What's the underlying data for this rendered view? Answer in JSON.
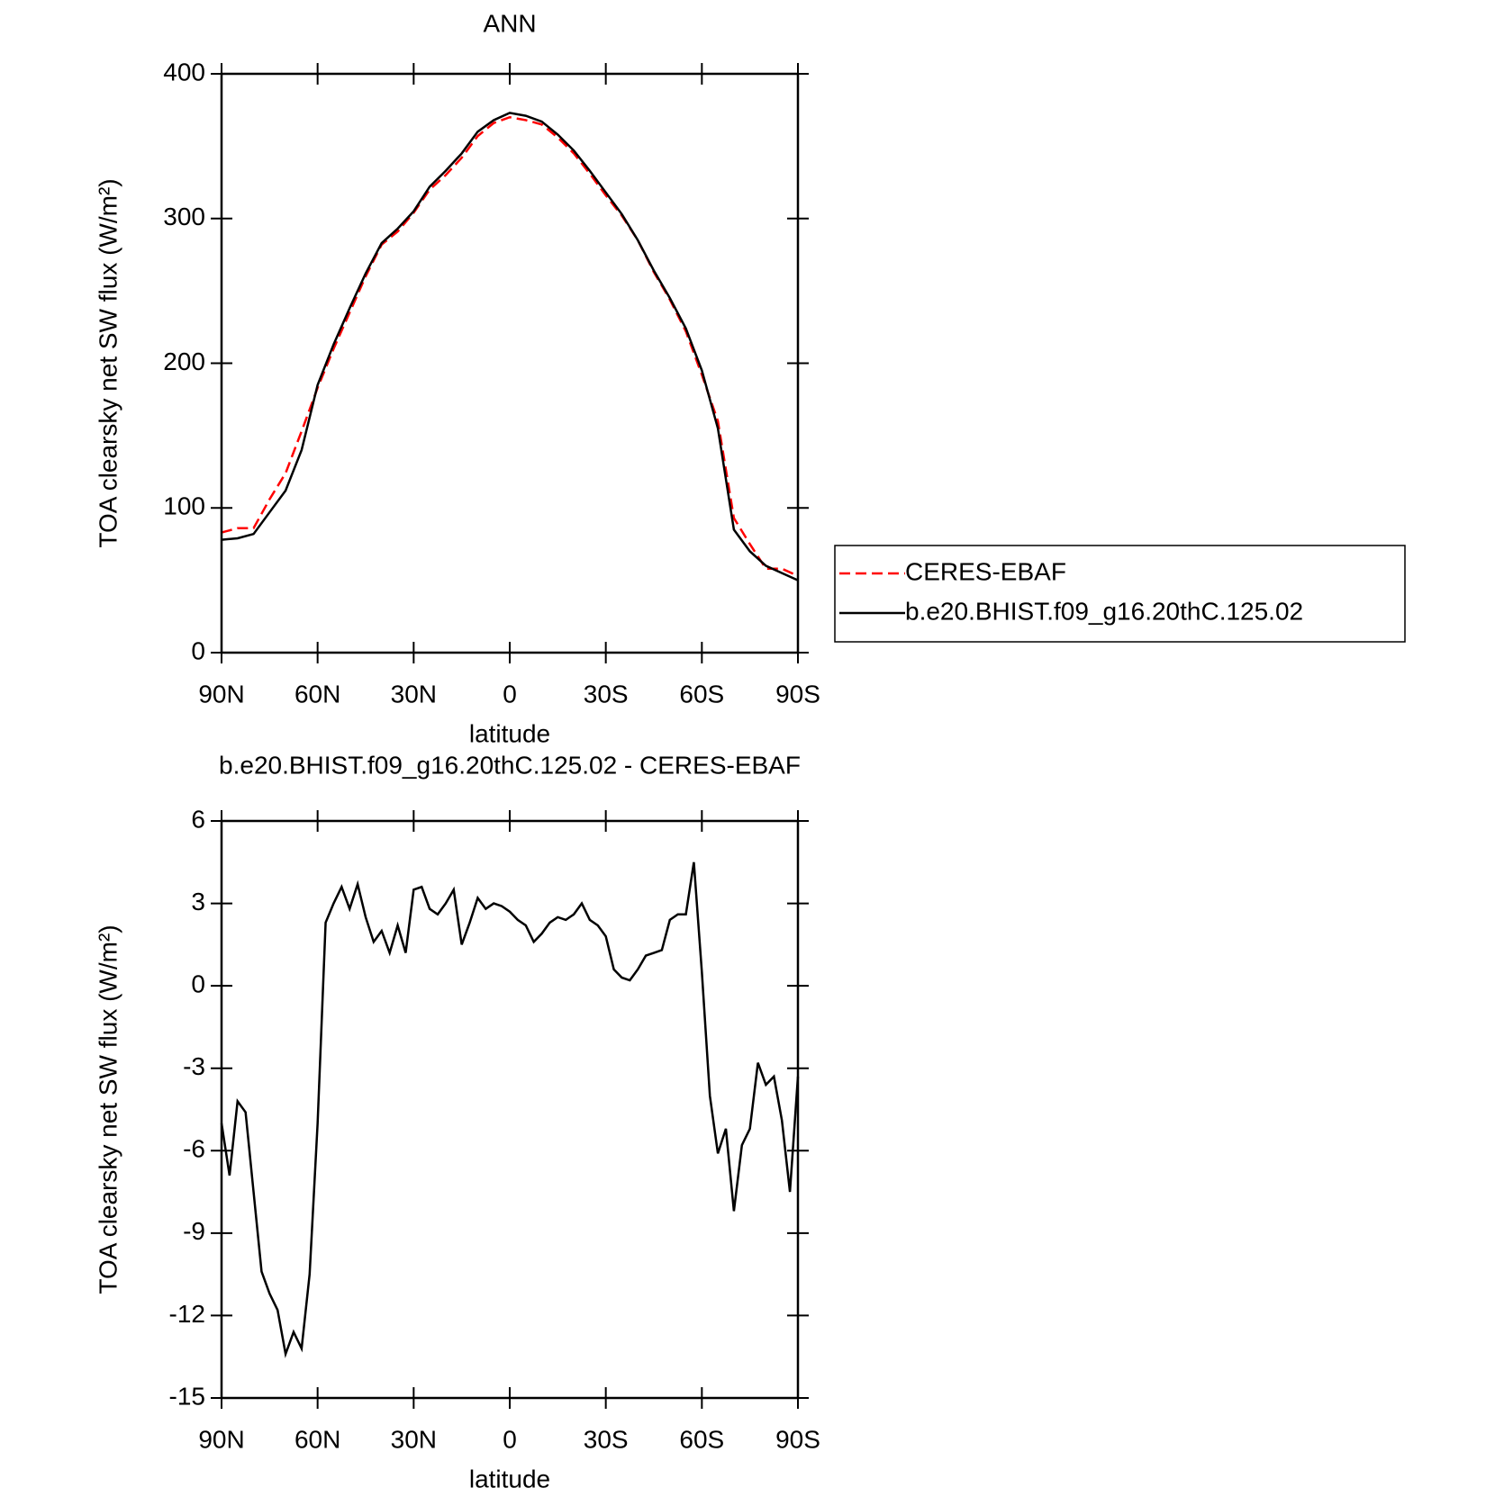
{
  "chart_data": [
    {
      "type": "line",
      "title": "ANN",
      "xlabel": "latitude",
      "ylabel": "TOA clearsky net SW flux (W/m²)",
      "x": [
        90,
        85,
        80,
        75,
        70,
        65,
        60,
        55,
        50,
        45,
        40,
        35,
        30,
        25,
        20,
        15,
        10,
        5,
        0,
        -5,
        -10,
        -15,
        -20,
        -25,
        -30,
        -35,
        -40,
        -45,
        -50,
        -55,
        -60,
        -65,
        -70,
        -75,
        -80,
        -85,
        -90
      ],
      "series": [
        {
          "name": "CERES-EBAF",
          "color": "#ff0000",
          "dash": true,
          "values": [
            83,
            86,
            86,
            106,
            124,
            153,
            183,
            210,
            235,
            260,
            282,
            291,
            304,
            320,
            330,
            342,
            357,
            366,
            370,
            368,
            365,
            356,
            345,
            331,
            316,
            302,
            285,
            263,
            244,
            222,
            192,
            160,
            93,
            75,
            58,
            58,
            53
          ]
        },
        {
          "name": "b.e20.BHIST.f09_g16.20thC.125.02",
          "color": "#000000",
          "dash": false,
          "values": [
            78,
            79,
            82,
            97,
            112,
            140,
            185,
            213,
            238,
            262,
            283,
            293,
            305,
            322,
            333,
            345,
            360,
            368,
            373,
            371,
            367,
            358,
            347,
            333,
            318,
            303,
            285,
            264,
            245,
            224,
            195,
            155,
            85,
            70,
            60,
            55,
            50
          ]
        }
      ],
      "xlim": [
        90,
        -90
      ],
      "xticks": [
        {
          "value": 90,
          "label": "90N"
        },
        {
          "value": 60,
          "label": "60N"
        },
        {
          "value": 30,
          "label": "30N"
        },
        0,
        {
          "value": -30,
          "label": "30S"
        },
        {
          "value": -60,
          "label": "60S"
        },
        {
          "value": -90,
          "label": "90S"
        }
      ],
      "ylim": [
        0,
        400
      ],
      "yticks": [
        0,
        100,
        200,
        300,
        400
      ],
      "legend": "right"
    },
    {
      "type": "line",
      "title": "b.e20.BHIST.f09_g16.20thC.125.02 - CERES-EBAF",
      "xlabel": "latitude",
      "ylabel": "TOA clearsky net SW flux (W/m²)",
      "x": [
        90,
        87.5,
        85,
        82.5,
        80,
        77.5,
        75,
        72.5,
        70,
        67.5,
        65,
        62.5,
        60,
        57.5,
        55,
        52.5,
        50,
        47.5,
        45,
        42.5,
        40,
        37.5,
        35,
        32.5,
        30,
        27.5,
        25,
        22.5,
        20,
        17.5,
        15,
        12.5,
        10,
        7.5,
        5,
        2.5,
        0,
        -2.5,
        -5,
        -7.5,
        -10,
        -12.5,
        -15,
        -17.5,
        -20,
        -22.5,
        -25,
        -27.5,
        -30,
        -32.5,
        -35,
        -37.5,
        -40,
        -42.5,
        -45,
        -47.5,
        -50,
        -52.5,
        -55,
        -57.5,
        -60,
        -62.5,
        -65,
        -67.5,
        -70,
        -72.5,
        -75,
        -77.5,
        -80,
        -82.5,
        -85,
        -87.5,
        -90
      ],
      "series": [
        {
          "name": "b.e20.BHIST.f09_g16.20thC.125.02 - CERES-EBAF",
          "color": "#000000",
          "dash": false,
          "values": [
            -5,
            -6.9,
            -4.2,
            -4.6,
            -7.5,
            -10.4,
            -11.2,
            -11.8,
            -13.4,
            -12.6,
            -13.2,
            -10.5,
            -5,
            2.3,
            3.0,
            3.6,
            2.8,
            3.7,
            2.5,
            1.6,
            2.0,
            1.2,
            2.2,
            1.2,
            3.5,
            3.6,
            2.8,
            2.6,
            3.0,
            3.5,
            1.5,
            2.3,
            3.2,
            2.8,
            3.0,
            2.9,
            2.7,
            2.4,
            2.2,
            1.6,
            1.9,
            2.3,
            2.5,
            2.4,
            2.6,
            3.0,
            2.4,
            2.2,
            1.8,
            0.6,
            0.3,
            0.2,
            0.6,
            1.1,
            1.2,
            1.3,
            2.4,
            2.6,
            2.6,
            4.5,
            0.5,
            -4,
            -6.1,
            -5.2,
            -8.2,
            -5.8,
            -5.2,
            -2.8,
            -3.6,
            -3.3,
            -4.9,
            -7.5,
            -3.3
          ]
        }
      ],
      "xlim": [
        90,
        -90
      ],
      "xticks": [
        {
          "value": 90,
          "label": "90N"
        },
        {
          "value": 60,
          "label": "60N"
        },
        {
          "value": 30,
          "label": "30N"
        },
        0,
        {
          "value": -30,
          "label": "30S"
        },
        {
          "value": -60,
          "label": "60S"
        },
        {
          "value": -90,
          "label": "90S"
        }
      ],
      "ylim": [
        -15,
        6
      ],
      "yticks": [
        -15,
        -12,
        -9,
        -6,
        -3,
        0,
        3,
        6
      ]
    }
  ]
}
